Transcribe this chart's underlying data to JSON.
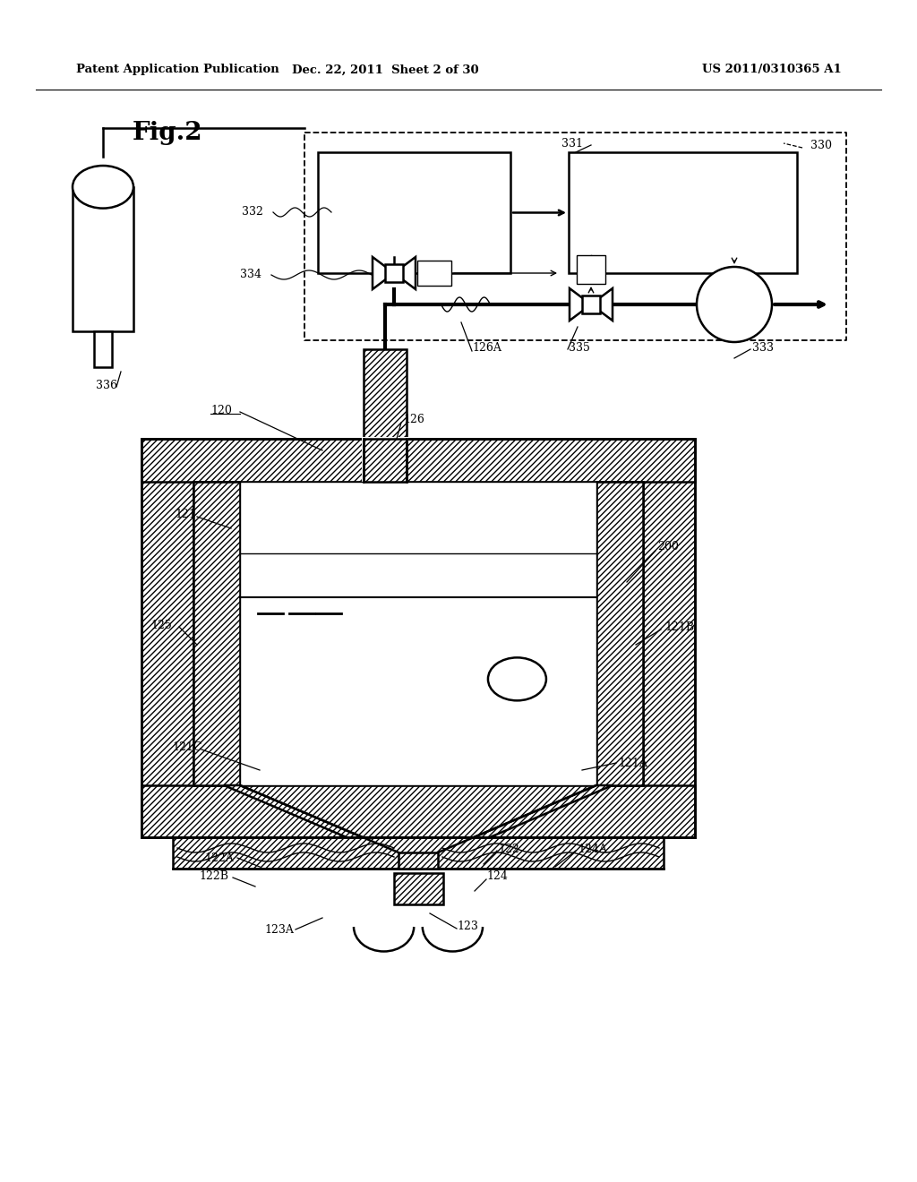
{
  "title_left": "Patent Application Publication",
  "title_mid": "Dec. 22, 2011  Sheet 2 of 30",
  "title_right": "US 2011/0310365 A1",
  "fig_label": "Fig.2",
  "background": "#ffffff",
  "line_color": "#000000"
}
